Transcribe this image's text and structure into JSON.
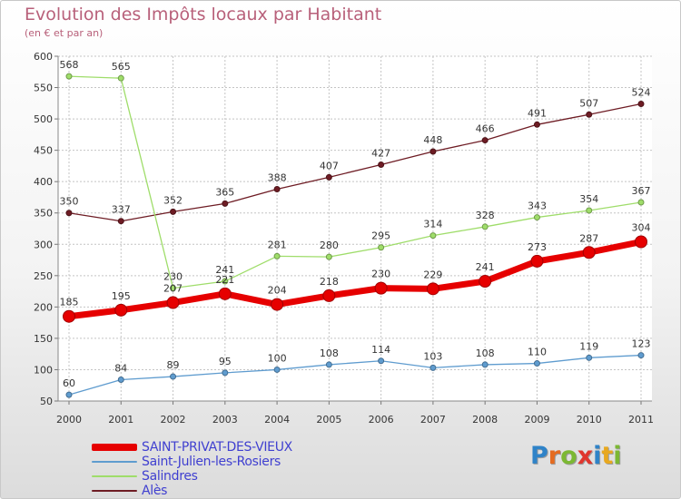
{
  "title": "Evolution des Impôts locaux par Habitant",
  "subtitle": "(en € et par an)",
  "logo": {
    "letters": [
      "P",
      "r",
      "o",
      "x",
      "i",
      "t",
      "i"
    ],
    "colors": [
      "#2f83c8",
      "#e56b1f",
      "#7cb833",
      "#e0362e",
      "#2f83c8",
      "#e8a81f",
      "#7cb833"
    ]
  },
  "chart_data": {
    "type": "line",
    "title": "Evolution des Impôts locaux par Habitant",
    "subtitle": "(en € et par an)",
    "xlabel": "",
    "ylabel": "",
    "x": [
      "2000",
      "2001",
      "2002",
      "2003",
      "2004",
      "2005",
      "2006",
      "2007",
      "2008",
      "2009",
      "2010",
      "2011"
    ],
    "ylim": [
      50,
      600
    ],
    "yticks": [
      50,
      100,
      150,
      200,
      250,
      300,
      350,
      400,
      450,
      500,
      550,
      600
    ],
    "grid": true,
    "legend_position": "bottom-left",
    "series": [
      {
        "name": "Alès",
        "color": "#6e1c24",
        "values": [
          350,
          337,
          352,
          365,
          388,
          407,
          427,
          448,
          466,
          491,
          507,
          524
        ]
      },
      {
        "name": "Salindres",
        "color": "#9fdd6a",
        "values": [
          568,
          565,
          230,
          241,
          281,
          280,
          295,
          314,
          328,
          343,
          354,
          367
        ]
      },
      {
        "name": "Saint-Julien-les-Rosiers",
        "color": "#5f9ccf",
        "values": [
          60,
          84,
          89,
          95,
          100,
          108,
          114,
          103,
          108,
          110,
          119,
          123
        ]
      },
      {
        "name": "SAINT-PRIVAT-DES-VIEUX",
        "color": "#e60000",
        "values": [
          185,
          195,
          207,
          221,
          204,
          218,
          230,
          229,
          241,
          273,
          287,
          304
        ]
      }
    ],
    "legend_order": [
      "SAINT-PRIVAT-DES-VIEUX",
      "Saint-Julien-les-Rosiers",
      "Salindres",
      "Alès"
    ]
  }
}
